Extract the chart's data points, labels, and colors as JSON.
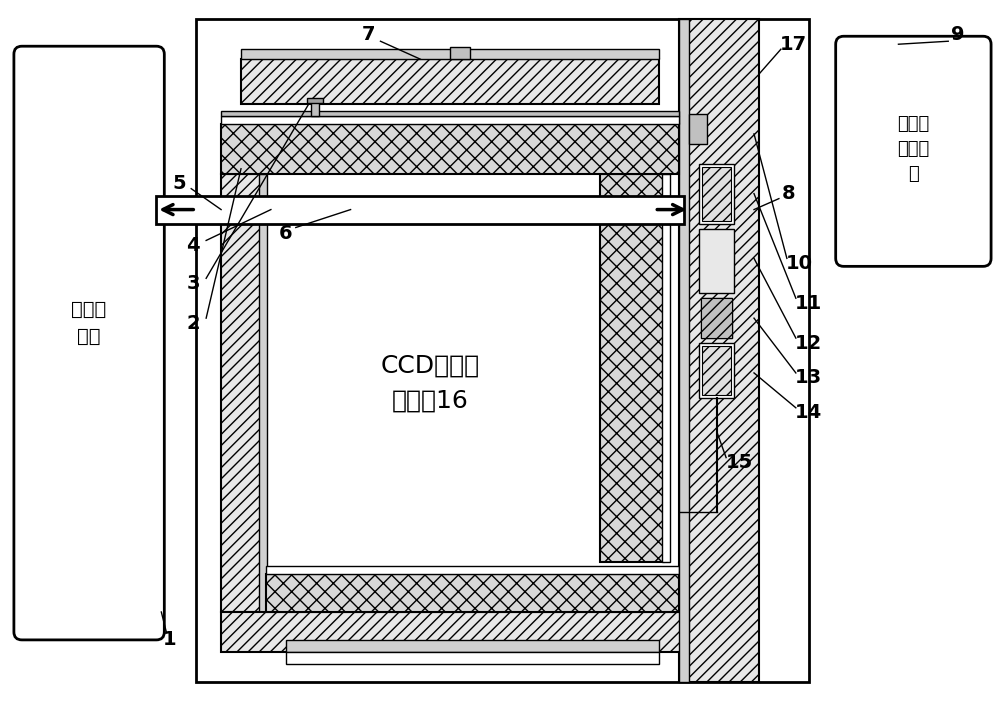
{
  "bg_color": "#ffffff",
  "fig_width": 10.0,
  "fig_height": 7.13,
  "left_box_label": "低温循\n环机",
  "right_box_label": "电加热\n片控制\n器",
  "center_label": "CCD图像采\n集装编16",
  "lw_thin": 1.0,
  "lw_med": 1.5,
  "lw_thick": 2.0
}
